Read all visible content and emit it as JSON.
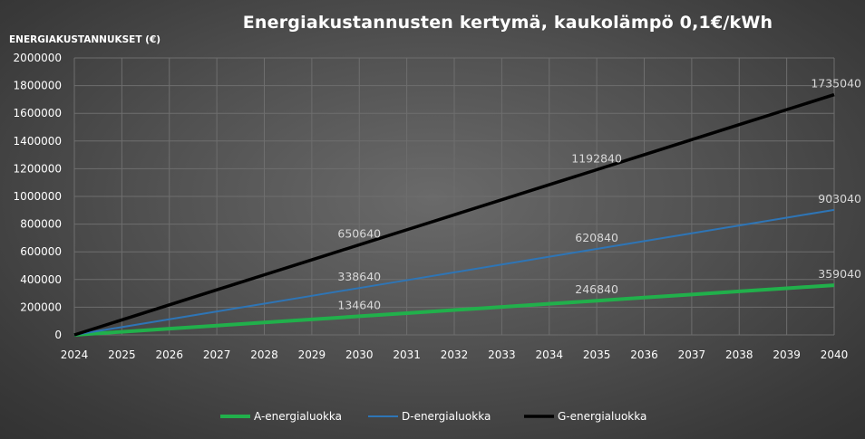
{
  "chart_data": {
    "type": "line",
    "title": "Energiakustannusten kertymä, kaukolämpö 0,1€/kWh",
    "ylabel": "ENERGIAKUSTANNUKSET (€)",
    "xlabel": "",
    "x": [
      "2024",
      "2025",
      "2026",
      "2027",
      "2028",
      "2029",
      "2030",
      "2031",
      "2032",
      "2033",
      "2034",
      "2035",
      "2036",
      "2037",
      "2038",
      "2039",
      "2040"
    ],
    "ylim": [
      0,
      2000000
    ],
    "yticks": [
      "0",
      "200000",
      "400000",
      "600000",
      "800000",
      "1000000",
      "1200000",
      "1400000",
      "1600000",
      "1800000",
      "2000000"
    ],
    "grid": true,
    "legend_position": "bottom",
    "series": [
      {
        "name": "A-energialuokka",
        "color": "#21b04b",
        "values": [
          0,
          22440,
          44880,
          67320,
          89760,
          112200,
          134640,
          157080,
          179520,
          201960,
          224400,
          246840,
          269280,
          291720,
          314160,
          336600,
          359040
        ],
        "labels": [
          {
            "index": 6,
            "text": "134640"
          },
          {
            "index": 11,
            "text": "246840"
          },
          {
            "index": 16,
            "text": "359040"
          }
        ]
      },
      {
        "name": "D-energialuokka",
        "color": "#2e75b6",
        "values": [
          0,
          56440,
          112880,
          169320,
          225760,
          282200,
          338640,
          395080,
          451520,
          507960,
          564400,
          620840,
          677280,
          733720,
          790160,
          846600,
          903040
        ],
        "labels": [
          {
            "index": 6,
            "text": "338640"
          },
          {
            "index": 11,
            "text": "620840"
          },
          {
            "index": 16,
            "text": "903040"
          }
        ]
      },
      {
        "name": "G-energialuokka",
        "color": "#000000",
        "values": [
          0,
          108440,
          216880,
          325320,
          433760,
          542200,
          650640,
          759080,
          867520,
          975960,
          1084400,
          1192840,
          1301280,
          1409720,
          1518160,
          1626600,
          1735040
        ],
        "labels": [
          {
            "index": 6,
            "text": "650640"
          },
          {
            "index": 11,
            "text": "1192840"
          },
          {
            "index": 16,
            "text": "1735040"
          }
        ]
      }
    ]
  }
}
